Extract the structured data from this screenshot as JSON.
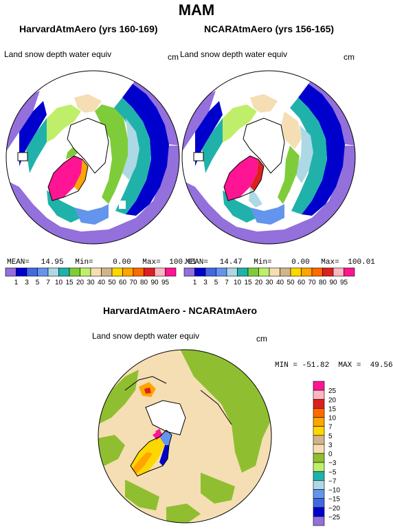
{
  "title": "MAM",
  "panels": [
    {
      "title": "HarvardAtmAero (yrs 160-169)",
      "variable": "Land snow depth water equiv",
      "unit": "cm",
      "mean_label": "MEAN=",
      "mean": "14.95",
      "min_label": "Min=",
      "min": "0.00",
      "max_label": "Max=",
      "max": "100.01"
    },
    {
      "title": "NCARAtmAero (yrs 156-165)",
      "variable": "Land snow depth water equiv",
      "unit": "cm",
      "mean_label": "MEAN=",
      "mean": "14.47",
      "min_label": "Min=",
      "min": "0.00",
      "max_label": "Max=",
      "max": "100.01"
    }
  ],
  "top_colorbar": {
    "labels": [
      "1",
      "3",
      "5",
      "7",
      "10",
      "15",
      "20",
      "30",
      "40",
      "50",
      "60",
      "70",
      "80",
      "90",
      "95"
    ],
    "colors": [
      "#9370db",
      "#0000cd",
      "#4169e1",
      "#6495ed",
      "#add8e6",
      "#20b2aa",
      "#7fcc3a",
      "#bfef6a",
      "#f5deb3",
      "#d2b48c",
      "#ffd700",
      "#ffa500",
      "#ff6a00",
      "#dc2020",
      "#ffb6c1",
      "#ff1493"
    ]
  },
  "diff_panel": {
    "title": "HarvardAtmAero - NCARAtmAero",
    "variable": "Land snow depth water equiv",
    "unit": "cm",
    "minmax": "MIN = -51.82  MAX =  49.56"
  },
  "diff_colorbar": {
    "labels": [
      "25",
      "20",
      "15",
      "10",
      "7",
      "5",
      "3",
      "0",
      "−3",
      "−5",
      "−7",
      "−10",
      "−15",
      "−20",
      "−25"
    ],
    "colors": [
      "#ff1493",
      "#ffb6c1",
      "#dc2020",
      "#ff6a00",
      "#ffa500",
      "#ffd700",
      "#d2b48c",
      "#f5deb3",
      "#8fbf30",
      "#bfef6a",
      "#20b2aa",
      "#add8e6",
      "#6495ed",
      "#4169e1",
      "#0000cd",
      "#9370db"
    ]
  },
  "colors": {
    "land_outline": "#000000",
    "ocean": "#ffffff"
  }
}
